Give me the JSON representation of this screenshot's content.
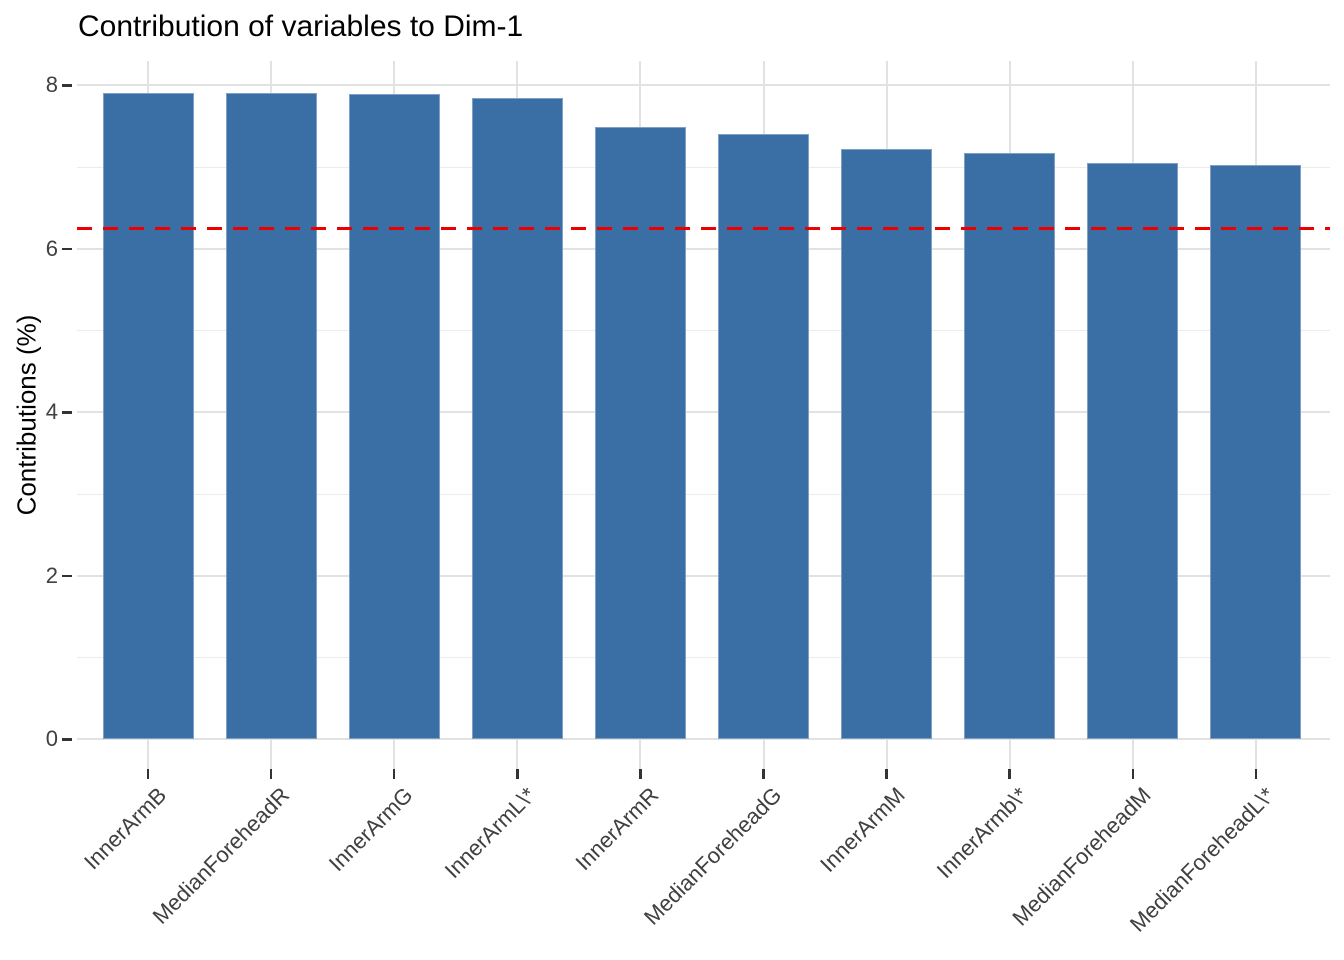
{
  "chart_data": {
    "type": "bar",
    "title": "Contribution of variables to Dim-1",
    "xlabel": "",
    "ylabel": "Contributions (%)",
    "categories": [
      "InnerArmB",
      "MedianForeheadR",
      "InnerArmG",
      "InnerArmL\\*",
      "InnerArmR",
      "MedianForeheadG",
      "InnerArmM",
      "InnerArmb\\*",
      "MedianForeheadM",
      "MedianForeheadL\\*"
    ],
    "values": [
      7.91,
      7.9,
      7.89,
      7.84,
      7.49,
      7.41,
      7.22,
      7.17,
      7.05,
      7.03
    ],
    "yticks": [
      0,
      2,
      4,
      6,
      8
    ],
    "minor_yticks": [
      1,
      3,
      5,
      7
    ],
    "ylim": [
      -0.36,
      8.3
    ],
    "grid": "on",
    "legend": "none",
    "x_tick_rotation": 45,
    "reference_line": {
      "value": 6.25,
      "style": "dashed",
      "color": "#EE0000"
    },
    "colors": {
      "bar_fill": "#3A6FA5",
      "major_grid": "#E2E2E2",
      "minor_grid": "#ECECEC",
      "tick_mark": "#333333",
      "axis_text": "#404040",
      "title_text": "#000000",
      "background": "#FFFFFF"
    }
  }
}
